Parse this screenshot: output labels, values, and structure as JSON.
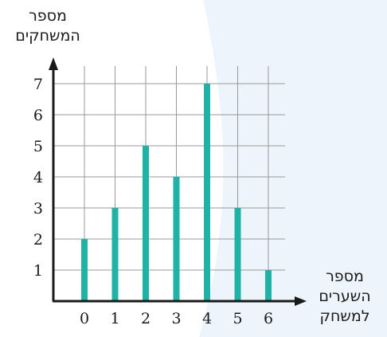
{
  "chart_data": {
    "type": "bar",
    "categories": [
      "0",
      "1",
      "2",
      "3",
      "4",
      "5",
      "6"
    ],
    "values": [
      2,
      3,
      5,
      4,
      7,
      3,
      1
    ],
    "title": "",
    "xlabel_lines": [
      "מספר",
      "השערים",
      "למשחק"
    ],
    "ylabel_lines": [
      "מספר",
      "המשחקים"
    ],
    "yticks": [
      "1",
      "2",
      "3",
      "4",
      "5",
      "6",
      "7"
    ],
    "ylim": [
      0,
      7
    ],
    "grid": true,
    "colors": {
      "bar": "#1fb2a6",
      "grid": "#9a9a9a",
      "axis": "#1a1a1a",
      "background_curve": "#eef4fb"
    }
  }
}
